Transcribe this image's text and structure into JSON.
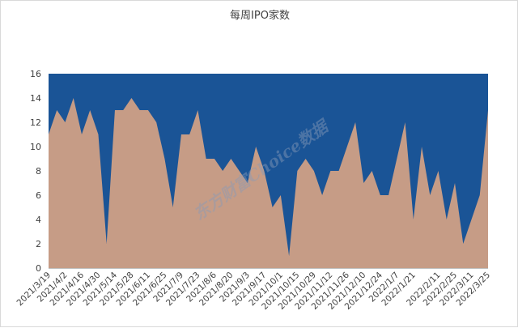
{
  "chart_data": {
    "type": "area",
    "title": "每周IPO家数",
    "xlabel": "",
    "ylabel": "",
    "ylim": [
      0,
      16
    ],
    "yticks": [
      0,
      2,
      4,
      6,
      8,
      10,
      12,
      14,
      16
    ],
    "grid": false,
    "legend": "none",
    "x": [
      "2021/3/19",
      "2021/3/26",
      "2021/4/2",
      "2021/4/9",
      "2021/4/16",
      "2021/4/23",
      "2021/4/30",
      "2021/5/7",
      "2021/5/14",
      "2021/5/21",
      "2021/5/28",
      "2021/6/4",
      "2021/6/11",
      "2021/6/18",
      "2021/6/25",
      "2021/7/2",
      "2021/7/9",
      "2021/7/16",
      "2021/7/23",
      "2021/7/30",
      "2021/8/6",
      "2021/8/13",
      "2021/8/20",
      "2021/8/27",
      "2021/9/3",
      "2021/9/10",
      "2021/9/17",
      "2021/9/24",
      "2021/10/1",
      "2021/10/8",
      "2021/10/15",
      "2021/10/22",
      "2021/10/29",
      "2021/11/5",
      "2021/11/12",
      "2021/11/19",
      "2021/11/26",
      "2021/12/3",
      "2021/12/10",
      "2021/12/17",
      "2021/12/24",
      "2021/12/31",
      "2022/1/7",
      "2022/1/14",
      "2022/1/21",
      "2022/1/28",
      "2022/2/4",
      "2022/2/11",
      "2022/2/18",
      "2022/2/25",
      "2022/3/4",
      "2022/3/11",
      "2022/3/18",
      "2022/3/25"
    ],
    "xtick_labels": [
      "2021/3/19",
      "2021/4/2",
      "2021/4/16",
      "2021/4/30",
      "2021/5/14",
      "2021/5/28",
      "2021/6/11",
      "2021/6/25",
      "2021/7/9",
      "2021/7/23",
      "2021/8/6",
      "2021/8/20",
      "2021/9/3",
      "2021/9/17",
      "2021/10/1",
      "2021/10/15",
      "2021/10/29",
      "2021/11/12",
      "2021/11/26",
      "2021/12/10",
      "2021/12/24",
      "2022/1/7",
      "2022/1/21",
      "2022/2/11",
      "2022/2/25",
      "2022/3/11",
      "2022/3/25"
    ],
    "series": [
      {
        "name": "",
        "values": [
          11,
          13,
          12,
          14,
          11,
          13,
          11,
          2,
          13,
          13,
          14,
          13,
          13,
          12,
          9,
          5,
          11,
          11,
          13,
          9,
          9,
          8,
          9,
          8,
          7,
          10,
          8,
          5,
          6,
          1,
          8,
          9,
          8,
          6,
          8,
          8,
          10,
          12,
          7,
          8,
          6,
          6,
          9,
          12,
          4,
          10,
          6,
          8,
          4,
          7,
          2,
          4,
          6,
          13
        ]
      }
    ],
    "colors": {
      "area": "#c69c86",
      "background": "#1a5496",
      "axis": "#bfbfbf"
    },
    "watermark": "东方财富Choice数据"
  }
}
